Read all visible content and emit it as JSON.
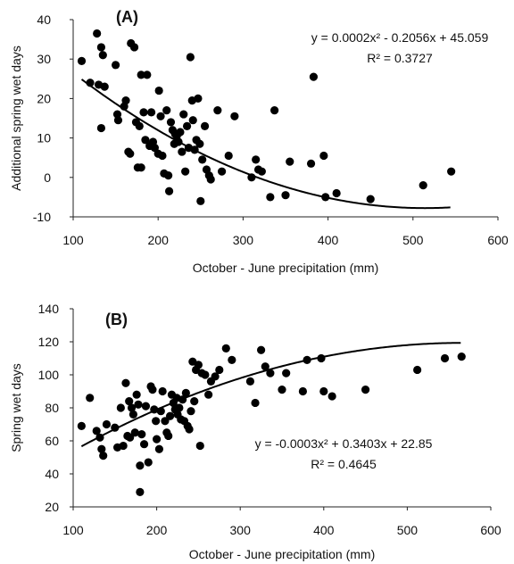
{
  "chart_data": [
    {
      "type": "scatter",
      "panel_label": "(A)",
      "xlabel": "October - June precipitation (mm)",
      "ylabel": "Additional spring wet days",
      "xlim": [
        100,
        600
      ],
      "ylim": [
        -10,
        40
      ],
      "xticks": [
        "100",
        "200",
        "300",
        "400",
        "500",
        "600"
      ],
      "yticks": [
        "-10",
        "0",
        "10",
        "20",
        "30",
        "40"
      ],
      "equation": "y = 0.0002x² - 0.2056x + 45.059",
      "r_squared": "R² = 0.3727",
      "trendline": {
        "a": 0.0002,
        "b": -0.2056,
        "c": 45.059,
        "x_range": [
          110,
          545
        ]
      },
      "grid": false,
      "points": [
        [
          110,
          29.5
        ],
        [
          120,
          24
        ],
        [
          128,
          36.5
        ],
        [
          130,
          23.5
        ],
        [
          133,
          33
        ],
        [
          135,
          31
        ],
        [
          133,
          12.5
        ],
        [
          137,
          23
        ],
        [
          150,
          28.5
        ],
        [
          152,
          16
        ],
        [
          153,
          14.5
        ],
        [
          160,
          18
        ],
        [
          162,
          19.5
        ],
        [
          165,
          6.5
        ],
        [
          167,
          6
        ],
        [
          168,
          34
        ],
        [
          172,
          33
        ],
        [
          174,
          14
        ],
        [
          176,
          2.5
        ],
        [
          178,
          13
        ],
        [
          180,
          2.5
        ],
        [
          180,
          26
        ],
        [
          183,
          16.5
        ],
        [
          185,
          9.5
        ],
        [
          187,
          26
        ],
        [
          190,
          8
        ],
        [
          192,
          16.5
        ],
        [
          194,
          9
        ],
        [
          196,
          7.5
        ],
        [
          200,
          6
        ],
        [
          201,
          22
        ],
        [
          203,
          15.5
        ],
        [
          205,
          5.5
        ],
        [
          207,
          1
        ],
        [
          210,
          17
        ],
        [
          212,
          0.5
        ],
        [
          213,
          -3.5
        ],
        [
          215,
          14
        ],
        [
          217,
          12
        ],
        [
          219,
          8.5
        ],
        [
          220,
          11
        ],
        [
          222,
          10.5
        ],
        [
          224,
          9
        ],
        [
          226,
          11.5
        ],
        [
          228,
          6.5
        ],
        [
          230,
          16
        ],
        [
          232,
          1.5
        ],
        [
          234,
          13
        ],
        [
          236,
          7.5
        ],
        [
          238,
          30.5
        ],
        [
          240,
          19.5
        ],
        [
          241,
          14.5
        ],
        [
          243,
          7
        ],
        [
          245,
          9.5
        ],
        [
          247,
          20
        ],
        [
          249,
          8.5
        ],
        [
          250,
          -6
        ],
        [
          252,
          4.5
        ],
        [
          255,
          13
        ],
        [
          257,
          2
        ],
        [
          260,
          0.5
        ],
        [
          262,
          -0.5
        ],
        [
          270,
          17
        ],
        [
          275,
          1.5
        ],
        [
          283,
          5.5
        ],
        [
          290,
          15.5
        ],
        [
          310,
          0
        ],
        [
          315,
          4.5
        ],
        [
          318,
          2
        ],
        [
          322,
          1.5
        ],
        [
          332,
          -5
        ],
        [
          337,
          17
        ],
        [
          350,
          -4.5
        ],
        [
          355,
          4
        ],
        [
          380,
          3.5
        ],
        [
          383,
          25.5
        ],
        [
          395,
          5.5
        ],
        [
          397,
          -5
        ],
        [
          410,
          -4
        ],
        [
          450,
          -5.5
        ],
        [
          512,
          -2
        ],
        [
          545,
          1.5
        ]
      ]
    },
    {
      "type": "scatter",
      "panel_label": "(B)",
      "xlabel": "October - June precipitation (mm)",
      "ylabel": "Spring wet days",
      "xlim": [
        100,
        600
      ],
      "ylim": [
        20,
        140
      ],
      "xticks": [
        "100",
        "200",
        "300",
        "400",
        "500",
        "600"
      ],
      "yticks": [
        "20",
        "40",
        "60",
        "80",
        "100",
        "120",
        "140"
      ],
      "equation": "y = -0.0003x² + 0.3403x + 22.85",
      "r_squared": "R² = 0.4645",
      "trendline": {
        "a": -0.0003,
        "b": 0.3403,
        "c": 22.85,
        "x_range": [
          110,
          565
        ]
      },
      "grid": false,
      "points": [
        [
          110,
          69
        ],
        [
          120,
          86
        ],
        [
          128,
          66
        ],
        [
          132,
          62
        ],
        [
          134,
          55
        ],
        [
          136,
          51
        ],
        [
          140,
          70
        ],
        [
          150,
          68
        ],
        [
          153,
          56
        ],
        [
          157,
          80
        ],
        [
          160,
          57
        ],
        [
          163,
          95
        ],
        [
          165,
          63
        ],
        [
          167,
          84
        ],
        [
          168,
          62
        ],
        [
          170,
          80
        ],
        [
          172,
          76
        ],
        [
          174,
          65
        ],
        [
          176,
          88
        ],
        [
          178,
          82
        ],
        [
          180,
          45
        ],
        [
          180,
          29
        ],
        [
          182,
          64
        ],
        [
          185,
          58
        ],
        [
          187,
          81
        ],
        [
          190,
          47
        ],
        [
          193,
          93
        ],
        [
          195,
          91
        ],
        [
          197,
          79
        ],
        [
          199,
          72
        ],
        [
          200,
          61
        ],
        [
          203,
          55
        ],
        [
          205,
          78
        ],
        [
          207,
          90
        ],
        [
          210,
          72
        ],
        [
          212,
          65
        ],
        [
          214,
          63
        ],
        [
          216,
          75
        ],
        [
          218,
          88
        ],
        [
          220,
          83
        ],
        [
          222,
          79
        ],
        [
          224,
          86
        ],
        [
          225,
          76
        ],
        [
          227,
          80
        ],
        [
          229,
          73
        ],
        [
          231,
          85
        ],
        [
          233,
          72
        ],
        [
          235,
          89
        ],
        [
          237,
          69
        ],
        [
          239,
          67
        ],
        [
          241,
          78
        ],
        [
          243,
          108
        ],
        [
          245,
          84
        ],
        [
          247,
          103
        ],
        [
          250,
          106
        ],
        [
          252,
          57
        ],
        [
          254,
          101
        ],
        [
          258,
          100
        ],
        [
          262,
          88
        ],
        [
          265,
          96
        ],
        [
          270,
          99
        ],
        [
          275,
          103
        ],
        [
          283,
          116
        ],
        [
          290,
          109
        ],
        [
          312,
          96
        ],
        [
          318,
          83
        ],
        [
          325,
          115
        ],
        [
          330,
          105
        ],
        [
          336,
          101
        ],
        [
          350,
          91
        ],
        [
          355,
          101
        ],
        [
          375,
          90
        ],
        [
          380,
          109
        ],
        [
          397,
          110
        ],
        [
          400,
          90
        ],
        [
          410,
          87
        ],
        [
          450,
          91
        ],
        [
          512,
          103
        ],
        [
          545,
          110
        ],
        [
          565,
          111
        ]
      ]
    }
  ]
}
